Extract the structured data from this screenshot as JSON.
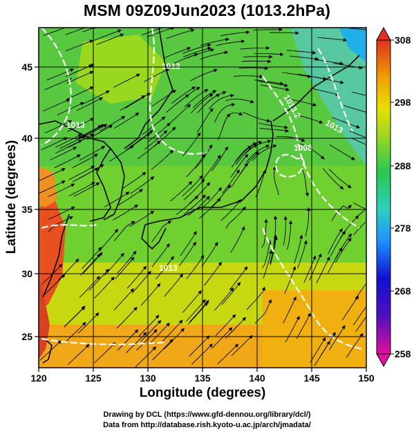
{
  "title": "MSM 09Z09Jun2023 (1013.2hPa)",
  "xaxis": {
    "label": "Longitude (degrees)",
    "ticks": [
      "120",
      "125",
      "130",
      "135",
      "140",
      "145",
      "150"
    ],
    "range": [
      120,
      150
    ]
  },
  "yaxis": {
    "label": "Latitude (degrees)",
    "ticks": [
      "25",
      "30",
      "35",
      "40",
      "45"
    ],
    "range": [
      22.4,
      47.6
    ]
  },
  "colorbar": {
    "ticks": [
      "308",
      "298",
      "288",
      "278",
      "268",
      "258"
    ],
    "range": [
      258,
      308
    ],
    "colors": [
      "#e0109a",
      "#1010d0",
      "#1e90ff",
      "#2ad0c0",
      "#28c850",
      "#7ed020",
      "#e6e000",
      "#f0a000",
      "#f06020",
      "#e03020"
    ]
  },
  "contour_labels": [
    "1013",
    "1013",
    "1008",
    "1013.2",
    "1013",
    "1013"
  ],
  "credits": {
    "line1": "Drawing by DCL (https://www.gfd-dennou.org/library/dcl/)",
    "line2": "Data from http://database.rish.kyoto-u.ac.jp/arch/jmadata/"
  }
}
